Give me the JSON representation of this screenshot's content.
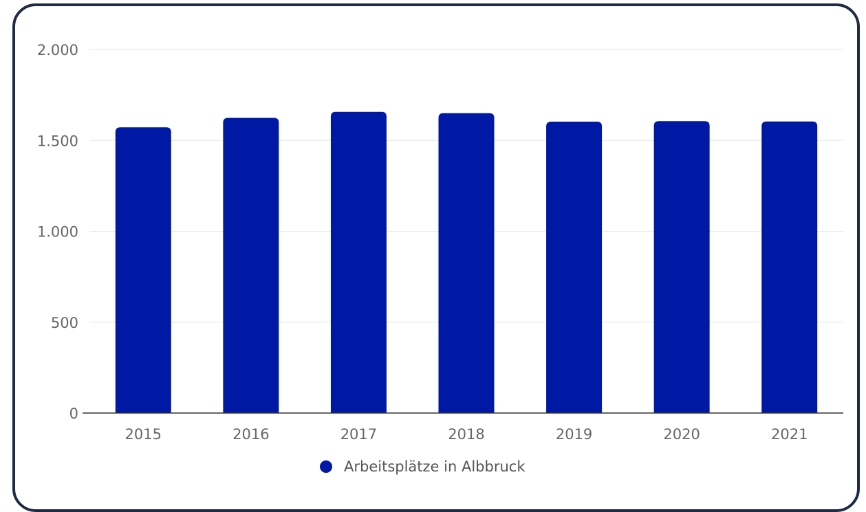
{
  "chart_data": {
    "type": "bar",
    "categories": [
      "2015",
      "2016",
      "2017",
      "2018",
      "2019",
      "2020",
      "2021"
    ],
    "series": [
      {
        "name": "Arbeitsplätze in Albbruck",
        "values": [
          1572,
          1624,
          1657,
          1650,
          1603,
          1606,
          1604
        ]
      }
    ],
    "ylim": [
      0,
      2000
    ],
    "yticks": [
      0,
      500,
      1000,
      1500,
      2000
    ],
    "ytick_labels": [
      "0",
      "500",
      "1.000",
      "1.500",
      "2.000"
    ],
    "grid": true,
    "legend_position": "bottom",
    "bar_color": "#0019a5",
    "gridline_color": "#e6e6e6",
    "axis_color": "#333333"
  }
}
